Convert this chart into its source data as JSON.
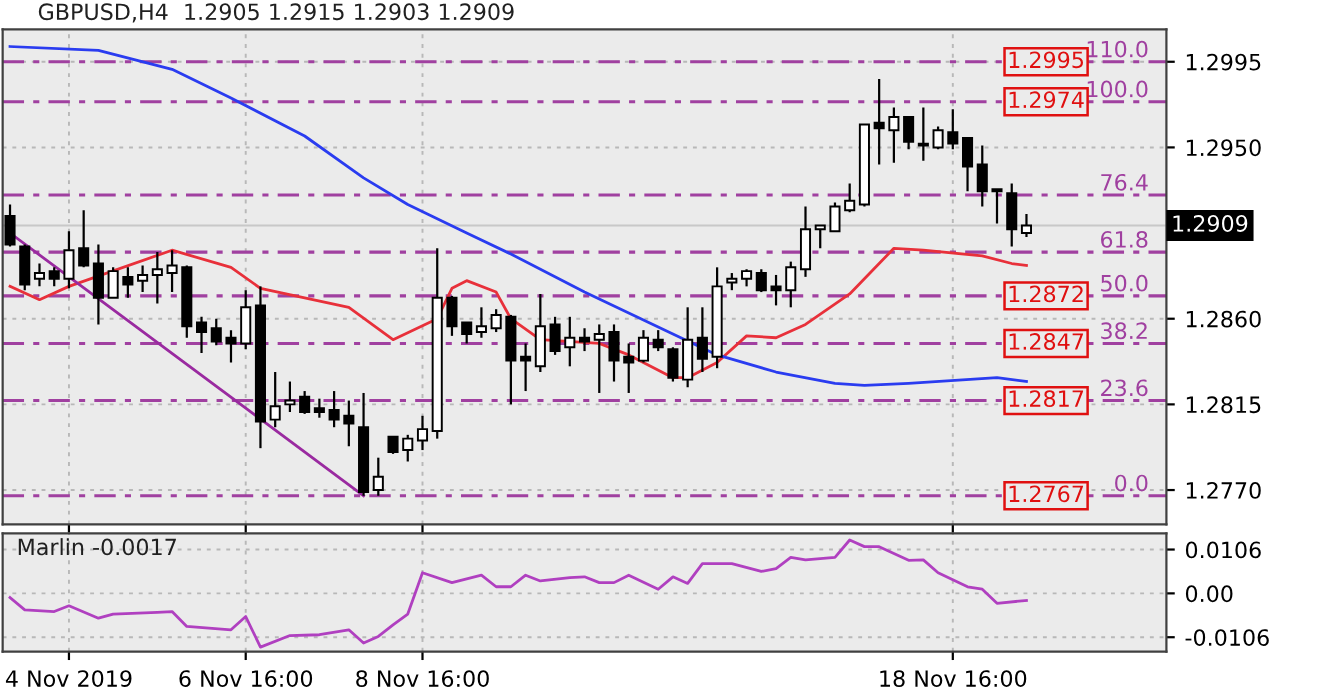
{
  "chart_data": [
    {
      "type": "candlestick",
      "title": "GBPUSD,H4  1.2905 1.2915 1.2903 1.2909",
      "categories": [
        null,
        null,
        null,
        null,
        null,
        null,
        null,
        null,
        null,
        null,
        null,
        null,
        null,
        null,
        null,
        null,
        null,
        null,
        null,
        null,
        null,
        null,
        null,
        null,
        null,
        null,
        null,
        null,
        null,
        null,
        null,
        null,
        null,
        null,
        null,
        null,
        null,
        null,
        null,
        null,
        null,
        null,
        null,
        null,
        null,
        null,
        null,
        null,
        null,
        null,
        null,
        null,
        null,
        null,
        null,
        null,
        null,
        null,
        null,
        null,
        null,
        null,
        null,
        null,
        null,
        null,
        null,
        null,
        null,
        null,
        null,
        null,
        null,
        null,
        null,
        null,
        null,
        null,
        null
      ],
      "ohlc": [
        [
          1.2914,
          1.292,
          1.2898,
          1.2899
        ],
        [
          1.2898,
          1.2899,
          1.2875,
          1.2878
        ],
        [
          1.2881,
          1.2889,
          1.2877,
          1.2884
        ],
        [
          1.2885,
          1.2887,
          1.2877,
          1.2881
        ],
        [
          1.2881,
          1.2906,
          1.2876,
          1.2896
        ],
        [
          1.2897,
          1.2917,
          1.2887,
          1.2888
        ],
        [
          1.2889,
          1.2899,
          1.2857,
          1.2871
        ],
        [
          1.2871,
          1.2887,
          1.2871,
          1.2885
        ],
        [
          1.2882,
          1.2887,
          1.2871,
          1.2878
        ],
        [
          1.288,
          1.2888,
          1.2874,
          1.2883
        ],
        [
          1.2883,
          1.2895,
          1.2868,
          1.2886
        ],
        [
          1.2884,
          1.2896,
          1.2874,
          1.2888
        ],
        [
          1.2887,
          1.2888,
          1.285,
          1.2856
        ],
        [
          1.2858,
          1.2861,
          1.2842,
          1.2853
        ],
        [
          1.2855,
          1.286,
          1.2846,
          1.2848
        ],
        [
          1.285,
          1.2854,
          1.2837,
          1.2847
        ],
        [
          1.2847,
          1.2875,
          1.2844,
          1.2866
        ],
        [
          1.2867,
          1.2877,
          1.2792,
          1.2806
        ],
        [
          1.2807,
          1.2832,
          1.2803,
          1.2814
        ],
        [
          1.2815,
          1.2827,
          1.2811,
          1.2817
        ],
        [
          1.2819,
          1.2822,
          1.281,
          1.2811
        ],
        [
          1.2813,
          1.2818,
          1.2808,
          1.2811
        ],
        [
          1.2812,
          1.2822,
          1.2803,
          1.2807
        ],
        [
          1.2809,
          1.2817,
          1.2793,
          1.2805
        ],
        [
          1.2803,
          1.2821,
          1.2767,
          1.2769
        ],
        [
          1.277,
          1.2787,
          1.2767,
          1.2777
        ],
        [
          1.2798,
          1.2798,
          1.2789,
          1.279
        ],
        [
          1.2791,
          1.2799,
          1.2785,
          1.2797
        ],
        [
          1.2796,
          1.2809,
          1.2791,
          1.2802
        ],
        [
          1.2801,
          1.2897,
          1.2797,
          1.2871
        ],
        [
          1.2871,
          1.2872,
          1.2851,
          1.2856
        ],
        [
          1.2858,
          1.2858,
          1.2847,
          1.2852
        ],
        [
          1.2853,
          1.2866,
          1.285,
          1.2856
        ],
        [
          1.2855,
          1.2865,
          1.2853,
          1.2862
        ],
        [
          1.2861,
          1.2862,
          1.2815,
          1.2838
        ],
        [
          1.284,
          1.2847,
          1.2822,
          1.2838
        ],
        [
          1.2835,
          1.2873,
          1.2832,
          1.2856
        ],
        [
          1.2857,
          1.2861,
          1.2841,
          1.2843
        ],
        [
          1.2845,
          1.2861,
          1.2835,
          1.285
        ],
        [
          1.285,
          1.2855,
          1.2843,
          1.2848
        ],
        [
          1.2849,
          1.2857,
          1.2821,
          1.2852
        ],
        [
          1.2853,
          1.2857,
          1.2827,
          1.2838
        ],
        [
          1.284,
          1.2847,
          1.2821,
          1.2837
        ],
        [
          1.2838,
          1.2854,
          1.2837,
          1.285
        ],
        [
          1.2849,
          1.2854,
          1.2843,
          1.2845
        ],
        [
          1.2844,
          1.2845,
          1.2827,
          1.2829
        ],
        [
          1.2828,
          1.2866,
          1.2824,
          1.2849
        ],
        [
          1.285,
          1.2866,
          1.2832,
          1.2839
        ],
        [
          1.284,
          1.2887,
          1.2834,
          1.2877
        ],
        [
          1.2879,
          1.2884,
          1.2875,
          1.2881
        ],
        [
          1.2881,
          1.2886,
          1.2877,
          1.2885
        ],
        [
          1.2884,
          1.2886,
          1.2874,
          1.2875
        ],
        [
          1.2877,
          1.2883,
          1.2867,
          1.2875
        ],
        [
          1.2875,
          1.289,
          1.2866,
          1.2887
        ],
        [
          1.2886,
          1.2919,
          1.2882,
          1.2907
        ],
        [
          1.2907,
          1.2909,
          1.2897,
          1.2909
        ],
        [
          1.2906,
          1.2921,
          1.2906,
          1.2919
        ],
        [
          1.2917,
          1.2931,
          1.2916,
          1.2922
        ],
        [
          1.292,
          1.2962,
          1.2919,
          1.2962
        ],
        [
          1.2963,
          1.2986,
          1.2941,
          1.296
        ],
        [
          1.2959,
          1.2971,
          1.2942,
          1.2966
        ],
        [
          1.2966,
          1.2966,
          1.2949,
          1.2953
        ],
        [
          1.2952,
          1.2971,
          1.2943,
          1.2951
        ],
        [
          1.295,
          1.2961,
          1.2949,
          1.2959
        ],
        [
          1.2958,
          1.297,
          1.2949,
          1.2952
        ],
        [
          1.2955,
          1.2955,
          1.2927,
          1.294
        ],
        [
          1.2941,
          1.2951,
          1.2919,
          1.2927
        ],
        [
          1.2928,
          1.2928,
          1.291,
          1.2927
        ],
        [
          1.2926,
          1.2931,
          1.2898,
          1.2907
        ],
        [
          1.2905,
          1.2915,
          1.2903,
          1.2909
        ],
        null,
        null,
        null,
        null,
        null,
        null,
        null,
        null,
        null
      ],
      "series": [
        {
          "type": "line",
          "color": "#e8303a",
          "values": [
            1.2877,
            null,
            1.287,
            null,
            1.2877,
            null,
            null,
            null,
            null,
            null,
            null,
            1.2896,
            null,
            null,
            null,
            1.2887,
            null,
            1.2876,
            null,
            null,
            null,
            null,
            null,
            1.2866,
            null,
            null,
            1.2849,
            null,
            null,
            1.286,
            1.2876,
            1.288,
            null,
            1.2874,
            1.286,
            null,
            1.2849,
            null,
            null,
            null,
            1.2847,
            null,
            1.2841,
            null,
            null,
            1.2829,
            1.2829,
            null,
            1.2837,
            null,
            1.2851,
            null,
            1.285,
            null,
            1.2857,
            null,
            null,
            1.2873,
            null,
            1.2889,
            1.2897,
            null,
            1.2896,
            null,
            null,
            null,
            1.2893,
            null,
            1.2889,
            1.2888,
            null,
            null,
            null,
            null,
            null,
            null,
            null,
            null,
            null
          ]
        },
        {
          "type": "line",
          "color": "#2a3cf0",
          "values": [
            1.3003,
            null,
            null,
            null,
            null,
            null,
            1.3001,
            null,
            null,
            null,
            null,
            1.2991,
            null,
            null,
            null,
            1.2976,
            null,
            null,
            null,
            null,
            1.2956,
            null,
            null,
            null,
            1.2934,
            null,
            null,
            1.292,
            null,
            null,
            null,
            1.2905,
            null,
            null,
            1.2894,
            null,
            null,
            null,
            null,
            1.2874,
            null,
            null,
            null,
            null,
            null,
            1.2852,
            null,
            null,
            1.2841,
            null,
            null,
            null,
            1.2832,
            null,
            null,
            null,
            1.2826,
            null,
            1.2825,
            null,
            null,
            1.2826,
            null,
            null,
            null,
            null,
            null,
            1.2829,
            null,
            1.2827,
            null,
            null,
            null,
            null,
            null,
            null,
            null,
            null,
            null
          ]
        },
        {
          "type": "line",
          "color": "#9a2aa0",
          "values": [
            1.2905,
            null,
            null,
            null,
            null,
            null,
            null,
            null,
            null,
            null,
            null,
            null,
            null,
            null,
            null,
            null,
            null,
            null,
            null,
            null,
            null,
            null,
            null,
            null,
            1.2767,
            null,
            null,
            null,
            null,
            null,
            null,
            null,
            null,
            null,
            null,
            null,
            null,
            null,
            null,
            null,
            null,
            null,
            null,
            null,
            null,
            null,
            null,
            null,
            null,
            null,
            null,
            null,
            null,
            null,
            null,
            null,
            null,
            null,
            null,
            null,
            null,
            null,
            null,
            null,
            null,
            null,
            null,
            null,
            null,
            null,
            null,
            null,
            null,
            null,
            null,
            null,
            null,
            null,
            null
          ]
        }
      ],
      "ylim": [
        1.2752,
        1.3012
      ],
      "yticks": [
        1.2995,
        {
          "value": 1.295,
          "label": "1.2950"
        },
        {
          "value": 1.286,
          "label": "1.2860"
        },
        1.2815,
        {
          "value": 1.277,
          "label": "1.2770"
        }
      ],
      "tick_labels": "y",
      "grid": true,
      "ref_lines": [
        {
          "axis": "y",
          "value": 1.2995,
          "label": "1.2995",
          "color": "#a040a0",
          "line_style": "dashed"
        },
        {
          "axis": "y",
          "value": 1.2974,
          "label": "1.2974",
          "color": "#a040a0",
          "line_style": "dashed"
        },
        {
          "axis": "y",
          "value": 1.2925,
          "color": "#a040a0",
          "line_style": "dashed"
        },
        {
          "axis": "y",
          "value": 1.2895,
          "color": "#a040a0",
          "line_style": "dashed"
        },
        {
          "axis": "y",
          "value": 1.2872,
          "label": "1.2872",
          "color": "#a040a0",
          "line_style": "dashed"
        },
        {
          "axis": "y",
          "value": 1.2847,
          "label": "1.2847",
          "color": "#a040a0",
          "line_style": "dashed"
        },
        {
          "axis": "y",
          "value": 1.2817,
          "label": "1.2817",
          "color": "#a040a0",
          "line_style": "dashed"
        },
        {
          "axis": "y",
          "value": 1.2767,
          "label": "1.2767",
          "color": "#a040a0",
          "line_style": "dashed"
        },
        {
          "axis": "y",
          "value": 1.2909,
          "label": "1.2909",
          "color": "#c8c8c8",
          "line_style": "solid"
        }
      ],
      "annotations": [
        {
          "text": "110.0",
          "y": 1.2995
        },
        {
          "text": "100.0",
          "y": 1.2974
        },
        {
          "text": "76.4",
          "y": 1.2925
        },
        {
          "text": "61.8",
          "y": 1.2895
        },
        {
          "text": "50.0",
          "y": 1.2872
        },
        {
          "text": "38.2",
          "y": 1.2847
        },
        {
          "text": "23.6",
          "y": 1.2817
        },
        {
          "text": "0.0",
          "y": 1.2767
        }
      ]
    },
    {
      "type": "line",
      "title": "Marlin -0.0017",
      "categories": [
        null,
        null,
        null,
        null,
        "4 Nov 2019",
        null,
        null,
        null,
        null,
        null,
        null,
        null,
        null,
        null,
        null,
        null,
        "6 Nov 16:00",
        null,
        null,
        null,
        null,
        null,
        null,
        null,
        null,
        null,
        null,
        null,
        "8 Nov 16:00",
        null,
        null,
        null,
        null,
        null,
        null,
        null,
        null,
        null,
        null,
        null,
        null,
        null,
        null,
        null,
        null,
        null,
        null,
        null,
        null,
        null,
        null,
        null,
        null,
        null,
        null,
        null,
        null,
        null,
        null,
        null,
        null,
        null,
        null,
        null,
        "18 Nov 16:00",
        null,
        null,
        null,
        null,
        null,
        null,
        null,
        null,
        null,
        null,
        null,
        null,
        null,
        null
      ],
      "series": [
        {
          "color": "#b040c0",
          "values": [
            -0.001,
            -0.004,
            null,
            -0.0044,
            -0.003,
            null,
            -0.006,
            -0.005,
            null,
            null,
            -0.0046,
            -0.0044,
            -0.008,
            null,
            null,
            -0.0088,
            -0.0056,
            -0.013,
            null,
            -0.0102,
            null,
            -0.01,
            null,
            -0.0088,
            -0.012,
            -0.0104,
            -0.0076,
            -0.005,
            0.005,
            null,
            0.0026,
            null,
            0.0044,
            0.0016,
            0.0016,
            0.0044,
            0.003,
            null,
            0.0038,
            0.004,
            0.0026,
            0.0026,
            0.0044,
            null,
            0.001,
            0.004,
            0.0024,
            0.0072,
            null,
            0.0072,
            null,
            0.0053,
            0.006,
            0.0087,
            0.0081,
            0.0084,
            0.0087,
            0.0129,
            0.0113,
            0.0113,
            null,
            0.008,
            0.0081,
            0.005,
            null,
            0.0016,
            0.001,
            -0.0024,
            null,
            -0.0017,
            null,
            null,
            null,
            null,
            null,
            null,
            null,
            null,
            null
          ]
        }
      ],
      "ylim": [
        -0.0141,
        0.0145
      ],
      "yticks": [
        0.0106,
        {
          "value": 0,
          "label": "0.00"
        },
        {
          "value": -0.0106,
          "label": "-0.0106"
        }
      ],
      "grid": true
    }
  ]
}
